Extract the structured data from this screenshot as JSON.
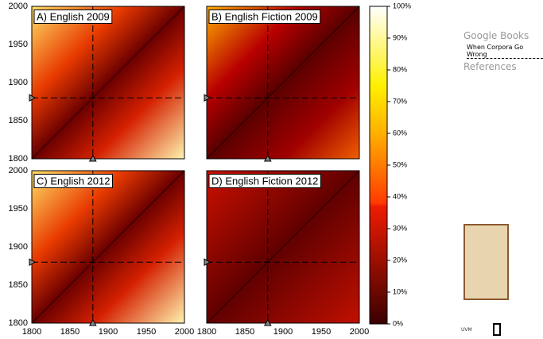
{
  "figure": {
    "panels": [
      "A) English 2009",
      "B) English Fiction 2009",
      "C) English 2012",
      "D) English Fiction 2012"
    ],
    "y_ticks": [
      2000,
      1950,
      1900,
      1850,
      1800
    ],
    "x_ticks": [
      1800,
      1850,
      1900,
      1950,
      2000
    ],
    "colorbar_ticks": [
      "100%",
      "90%",
      "80%",
      "70%",
      "60%",
      "50%",
      "40%",
      "30%",
      "20%",
      "10%",
      "0%"
    ]
  },
  "sidebar": {
    "links": [
      "Google Books",
      "When Corpora Go Wrong",
      "References"
    ],
    "logo": "UVM"
  }
}
